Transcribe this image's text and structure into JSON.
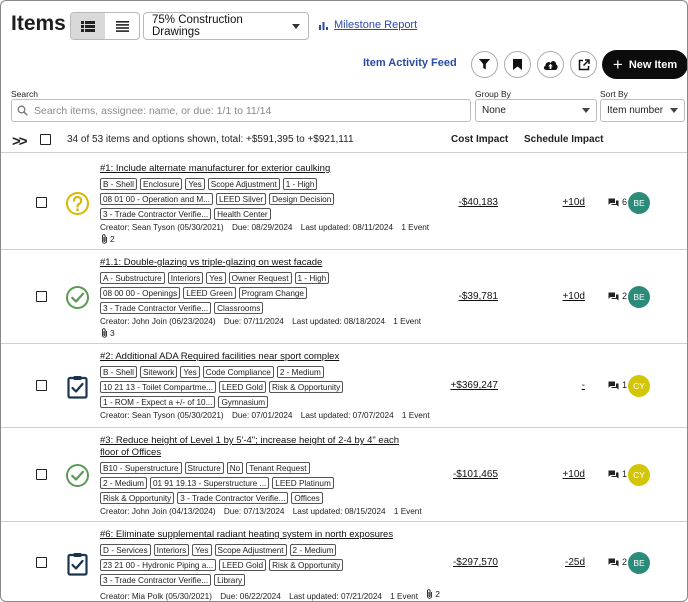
{
  "header": {
    "title": "Items",
    "view_select": "75% Construction Drawings",
    "milestone_link": "Milestone Report",
    "activity_feed": "Item Activity Feed",
    "new_item": "New Item"
  },
  "filters": {
    "search_label": "Search",
    "search_placeholder": "Search items, assignee: name, or due: 1/1 to 11/14",
    "group_by_label": "Group By",
    "group_by_value": "None",
    "sort_by_label": "Sort By",
    "sort_by_value": "Item number"
  },
  "summary": {
    "count_text": "34 of 53 items and options shown, total: +$591,395 to +$921,111",
    "cost_header": "Cost Impact",
    "schedule_header": "Schedule Impact"
  },
  "items": [
    {
      "name": "#1: Include alternate manufacturer for exterior caulking",
      "status_icon": "question-icon",
      "tags": [
        "B - Shell",
        "Enclosure",
        "Yes",
        "Scope Adjustment",
        "1 - High",
        "08 01 00 - Operation and M...",
        "LEED Silver",
        "Design Decision",
        "3 - Trade Contractor Verifie...",
        "Health Center"
      ],
      "creator": "Creator: Sean Tyson (05/30/2021)",
      "due": "Due: 08/29/2024",
      "updated": "Last updated: 08/11/2024",
      "events": "1 Event",
      "attachments": "2",
      "cost": "-$40,183",
      "schedule": "+10d",
      "comments": "6",
      "assignee": "BE"
    },
    {
      "name": "#1.1: Double-glazing vs triple-glazing on west facade",
      "status_icon": "check-circle-icon",
      "tags": [
        "A - Substructure",
        "Interiors",
        "Yes",
        "Owner Request",
        "1 - High",
        "08 00 00 - Openings",
        "LEED Green",
        "Program Change",
        "3 - Trade Contractor Verifie...",
        "Classrooms"
      ],
      "creator": "Creator: John Join (06/23/2024)",
      "due": "Due: 07/11/2024",
      "updated": "Last updated: 08/18/2024",
      "events": "1 Event",
      "attachments": "3",
      "cost": "-$39,781",
      "schedule": "+10d",
      "comments": "2",
      "assignee": "BE"
    },
    {
      "name": "#2: Additional ADA Required facilities near sport complex",
      "status_icon": "clipboard-check-icon",
      "tags": [
        "B - Shell",
        "Sitework",
        "Yes",
        "Code Compliance",
        "2 - Medium",
        "10 21 13 - Toilet Compartme...",
        "LEED Gold",
        "Risk & Opportunity",
        "1 - ROM - Expect a +/- of 10...",
        "Gymnasium"
      ],
      "creator": "Creator: Sean Tyson (05/30/2021)",
      "due": "Due: 07/01/2024",
      "updated": "Last updated: 07/07/2024",
      "events": "1 Event",
      "attachments": "",
      "cost": "+$369,247",
      "schedule": "-",
      "comments": "1",
      "assignee": "CY"
    },
    {
      "name": "#3: Reduce height of Level 1 by 5'-4\"; increase height of 2-4 by 4\" each floor of Offices",
      "status_icon": "check-circle-icon",
      "tags": [
        "B10 - Superstructure",
        "Structure",
        "No",
        "Tenant Request",
        "2 - Medium",
        "01 91 19.13 - Superstructure ...",
        "LEED Platinum",
        "Risk & Opportunity",
        "3 - Trade Contractor Verifie...",
        "Offices"
      ],
      "creator": "Creator: John Join (04/13/2024)",
      "due": "Due: 07/13/2024",
      "updated": "Last updated: 08/15/2024",
      "events": "1 Event",
      "attachments": "",
      "cost": "-$101,465",
      "schedule": "+10d",
      "comments": "1",
      "assignee": "CY"
    },
    {
      "name": "#6: Eliminate supplemental radiant heating system in north exposures",
      "status_icon": "clipboard-check-icon",
      "tags": [
        "D - Services",
        "Interiors",
        "Yes",
        "Scope Adjustment",
        "2 - Medium",
        "23 21 00 - Hydronic Piping a...",
        "LEED Gold",
        "Risk & Opportunity",
        "3 - Trade Contractor Verifie...",
        "Library"
      ],
      "creator": "Creator: Mia Polk (05/30/2021)",
      "due": "Due: 06/22/2024",
      "updated": "Last updated: 07/21/2024",
      "events": "1 Event",
      "attachments": "2",
      "cost": "-$297,570",
      "schedule": "-25d",
      "comments": "2",
      "assignee": "BE"
    }
  ],
  "colors": {
    "question": "#d8b800",
    "check": "#5a9a52",
    "clipboard": "#1a3550",
    "link": "#2b4aa8",
    "avatar_be": "#2d8b7a",
    "avatar_cy": "#d3c508"
  }
}
